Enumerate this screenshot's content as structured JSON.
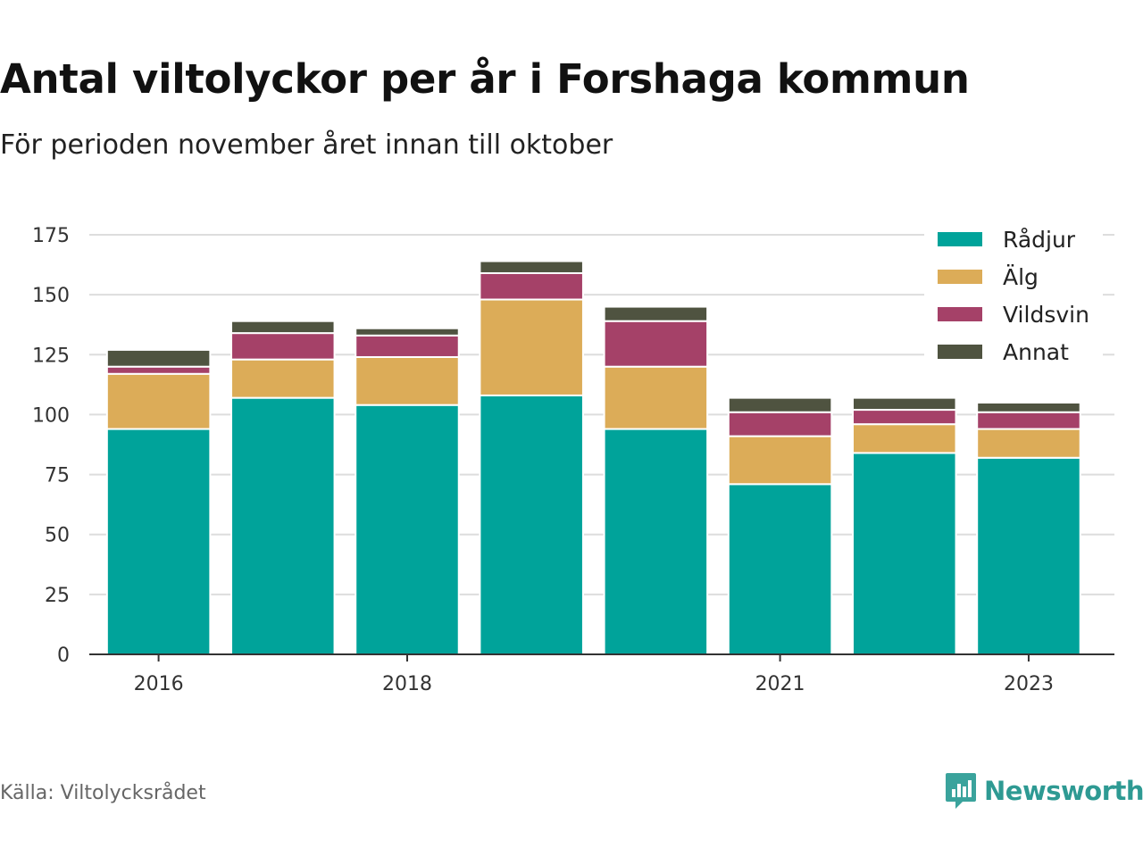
{
  "title": "Antal viltolyckor per år i Forshaga kommun",
  "subtitle": "För perioden november året innan till oktober",
  "source": "Källa: Viltolycksrådet",
  "brand": "Newsworthy",
  "chart_data": {
    "type": "bar",
    "stacked": true,
    "categories": [
      "2016",
      "2017",
      "2018",
      "2019",
      "2020",
      "2021",
      "2022",
      "2023"
    ],
    "x_tick_labels": [
      "2016",
      "",
      "2018",
      "",
      "",
      "2021",
      "",
      "2023"
    ],
    "series": [
      {
        "name": "Rådjur",
        "color": "#00a39a",
        "values": [
          94,
          107,
          104,
          108,
          94,
          71,
          84,
          82
        ]
      },
      {
        "name": "Älg",
        "color": "#dcac58",
        "values": [
          23,
          16,
          20,
          40,
          26,
          20,
          12,
          12
        ]
      },
      {
        "name": "Vildsvin",
        "color": "#a54168",
        "values": [
          3,
          11,
          9,
          11,
          19,
          10,
          6,
          7
        ]
      },
      {
        "name": "Annat",
        "color": "#4f5340",
        "values": [
          7,
          5,
          3,
          5,
          6,
          6,
          5,
          4
        ]
      }
    ],
    "yticks": [
      0,
      25,
      50,
      75,
      100,
      125,
      150,
      175
    ],
    "ylim": [
      0,
      175
    ],
    "grid": true,
    "legend": "top-right"
  }
}
